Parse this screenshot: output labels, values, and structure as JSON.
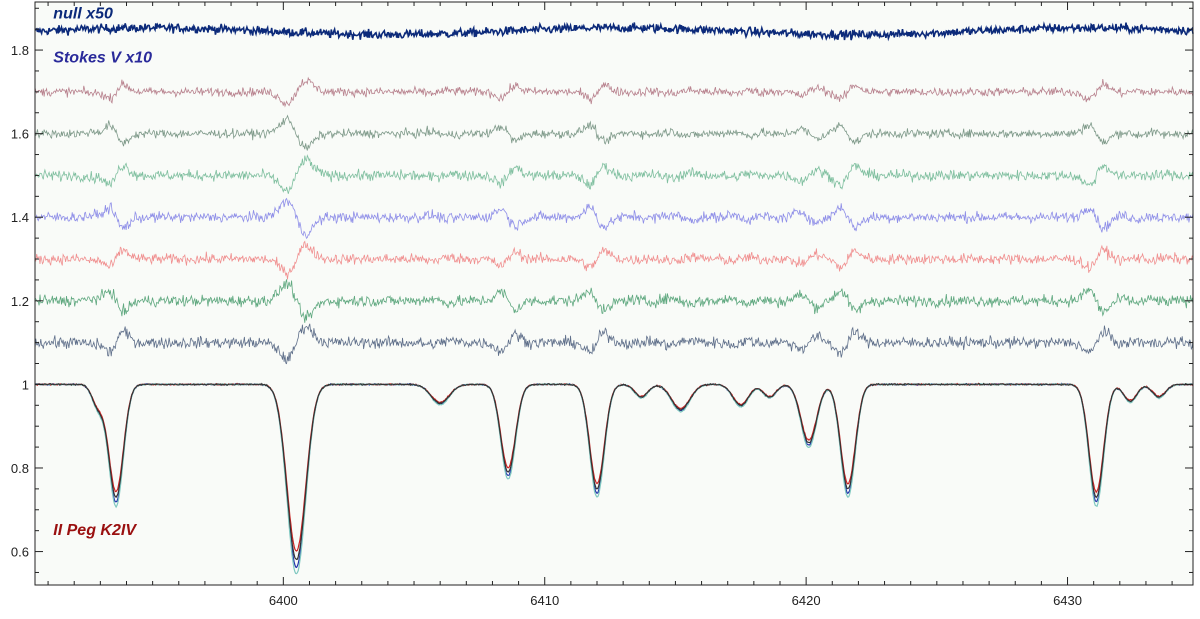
{
  "chart_data": {
    "type": "line",
    "title": "",
    "xlabel": "",
    "ylabel": "",
    "xlim": [
      6390.5,
      6434.8
    ],
    "ylim": [
      0.52,
      1.915
    ],
    "grid": false,
    "background": "#f9fbf8",
    "x_ticks": [
      {
        "value": 6400,
        "label": "6400"
      },
      {
        "value": 6410,
        "label": "6410"
      },
      {
        "value": 6420,
        "label": "6420"
      },
      {
        "value": 6430,
        "label": "6430"
      }
    ],
    "y_ticks": [
      {
        "value": 0.6,
        "label": "0.6"
      },
      {
        "value": 0.8,
        "label": "0.8"
      },
      {
        "value": 1.0,
        "label": "1"
      },
      {
        "value": 1.2,
        "label": "1.2"
      },
      {
        "value": 1.4,
        "label": "1.4"
      },
      {
        "value": 1.6,
        "label": "1.6"
      },
      {
        "value": 1.8,
        "label": "1.8"
      }
    ],
    "annotations": [
      {
        "text": "null x50",
        "x": 6391.2,
        "y": 1.875,
        "color": "#0c2a7a"
      },
      {
        "text": "Stokes V x10",
        "x": 6391.2,
        "y": 1.77,
        "color": "#2a2a9a"
      },
      {
        "text": "II Peg K2IV",
        "x": 6391.2,
        "y": 0.64,
        "color": "#9a1010"
      }
    ],
    "lines": [
      {
        "center": 6393.6,
        "depth": 0.27,
        "width": 0.28
      },
      {
        "center": 6392.9,
        "depth": 0.05,
        "width": 0.22
      },
      {
        "center": 6400.5,
        "depth": 0.42,
        "width": 0.36
      },
      {
        "center": 6406.0,
        "depth": 0.045,
        "width": 0.35
      },
      {
        "center": 6408.6,
        "depth": 0.21,
        "width": 0.28
      },
      {
        "center": 6412.0,
        "depth": 0.25,
        "width": 0.28
      },
      {
        "center": 6413.7,
        "depth": 0.03,
        "width": 0.25
      },
      {
        "center": 6415.2,
        "depth": 0.06,
        "width": 0.35
      },
      {
        "center": 6417.5,
        "depth": 0.05,
        "width": 0.3
      },
      {
        "center": 6418.6,
        "depth": 0.03,
        "width": 0.25
      },
      {
        "center": 6420.1,
        "depth": 0.14,
        "width": 0.3
      },
      {
        "center": 6421.6,
        "depth": 0.25,
        "width": 0.28
      },
      {
        "center": 6431.1,
        "depth": 0.27,
        "width": 0.28
      },
      {
        "center": 6432.4,
        "depth": 0.04,
        "width": 0.25
      },
      {
        "center": 6433.5,
        "depth": 0.03,
        "width": 0.25
      }
    ],
    "intensity_series": [
      {
        "color": "#2233aa",
        "depth_scale": 1.04
      },
      {
        "color": "#cc2222",
        "depth_scale": 0.95
      },
      {
        "color": "#7fc8c0",
        "depth_scale": 1.08
      },
      {
        "color": "#333333",
        "depth_scale": 1.0
      }
    ],
    "stokes_v_series": [
      {
        "offset": 1.7,
        "color": "#b8828e",
        "amp": 0.75,
        "noise": 0.01
      },
      {
        "offset": 1.6,
        "color": "#7f9a8a",
        "amp": 0.95,
        "noise": 0.01
      },
      {
        "offset": 1.5,
        "color": "#7fbf9f",
        "amp": 1.05,
        "noise": 0.012
      },
      {
        "offset": 1.4,
        "color": "#8f8fe8",
        "amp": 1.1,
        "noise": 0.012
      },
      {
        "offset": 1.3,
        "color": "#f09090",
        "amp": 0.9,
        "noise": 0.012
      },
      {
        "offset": 1.2,
        "color": "#5fa87f",
        "amp": 1.15,
        "noise": 0.013
      },
      {
        "offset": 1.1,
        "color": "#5f6f8a",
        "amp": 1.1,
        "noise": 0.013
      }
    ],
    "null_series": {
      "offset": 1.845,
      "color": "#0c2a7a",
      "noise": 0.01
    }
  }
}
